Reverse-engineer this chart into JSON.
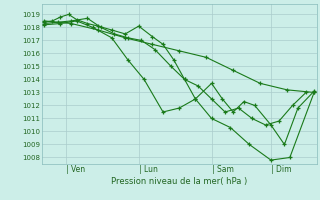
{
  "background_color": "#cceee8",
  "grid_color": "#aacccc",
  "line_color": "#1a7a1a",
  "marker_color": "#1a7a1a",
  "ylabel_ticks": [
    1008,
    1009,
    1010,
    1011,
    1012,
    1013,
    1014,
    1015,
    1016,
    1017,
    1018,
    1019
  ],
  "ylim": [
    1007.5,
    1019.8
  ],
  "xlabel": "Pression niveau de la mer( hPa )",
  "day_labels": [
    "| Ven",
    "| Lun",
    "| Sam",
    "| Dim"
  ],
  "day_positions": [
    0.08,
    0.35,
    0.62,
    0.84
  ],
  "series1_x": [
    0.0,
    0.03,
    0.06,
    0.09,
    0.12,
    0.16,
    0.2,
    0.25,
    0.3,
    0.35,
    0.4,
    0.44,
    0.48,
    0.52,
    0.56,
    0.62,
    0.66,
    0.7,
    0.74,
    0.78,
    0.84,
    0.89,
    0.94,
    1.0
  ],
  "series1_y": [
    1018.4,
    1018.5,
    1018.8,
    1019.0,
    1018.6,
    1018.3,
    1018.1,
    1017.8,
    1017.5,
    1018.1,
    1017.3,
    1016.7,
    1015.5,
    1014.0,
    1012.5,
    1013.7,
    1012.5,
    1011.5,
    1012.3,
    1012.0,
    1010.5,
    1009.0,
    1011.8,
    1013.1
  ],
  "series2_x": [
    0.0,
    0.05,
    0.1,
    0.16,
    0.21,
    0.26,
    0.31,
    0.36,
    0.41,
    0.47,
    0.52,
    0.57,
    0.62,
    0.67,
    0.72,
    0.77,
    0.82,
    0.87,
    0.92,
    0.97
  ],
  "series2_y": [
    1018.3,
    1018.4,
    1018.5,
    1018.7,
    1018.0,
    1017.5,
    1017.2,
    1017.0,
    1016.3,
    1015.0,
    1014.0,
    1013.5,
    1012.5,
    1011.5,
    1011.8,
    1011.0,
    1010.5,
    1010.8,
    1012.0,
    1013.0
  ],
  "series3_x": [
    0.0,
    0.06,
    0.12,
    0.18,
    0.25,
    0.31,
    0.37,
    0.44,
    0.5,
    0.56,
    0.62,
    0.69,
    0.76,
    0.84,
    0.91,
    1.0
  ],
  "series3_y": [
    1018.2,
    1018.3,
    1018.5,
    1018.0,
    1017.2,
    1015.5,
    1014.0,
    1011.5,
    1011.8,
    1012.5,
    1011.0,
    1010.3,
    1009.0,
    1007.8,
    1008.0,
    1013.0
  ],
  "series4_x": [
    0.0,
    0.1,
    0.2,
    0.3,
    0.4,
    0.5,
    0.6,
    0.7,
    0.8,
    0.9,
    1.0
  ],
  "series4_y": [
    1018.5,
    1018.3,
    1017.8,
    1017.2,
    1016.7,
    1016.2,
    1015.7,
    1014.7,
    1013.7,
    1013.2,
    1013.0
  ]
}
